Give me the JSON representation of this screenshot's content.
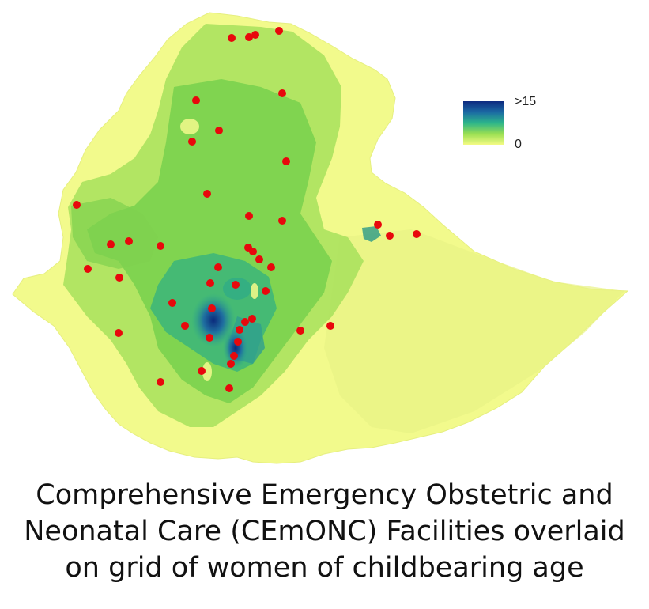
{
  "map": {
    "colors": {
      "low": "#f2fa8c",
      "mid_low": "#a6e15a",
      "mid": "#48c04c",
      "mid_high": "#22a28e",
      "high": "#0d2a80",
      "facility": "#e8080c"
    },
    "facility_count": 48
  },
  "legend": {
    "max_label": ">15",
    "min_label": "0"
  },
  "caption": {
    "line1": "Comprehensive Emergency Obstetric and",
    "line2": "Neonatal Care (CEmONC) Facilities overlaid",
    "line3": "on grid of women of childbearing age"
  }
}
